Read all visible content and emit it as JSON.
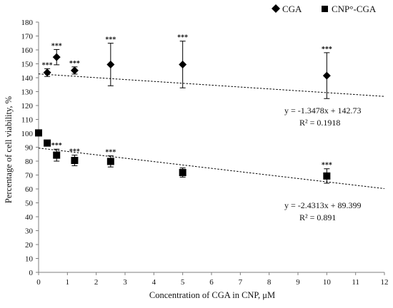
{
  "chart_data": {
    "type": "scatter",
    "title": "",
    "xlabel": "Concentration of CGA in CNP, μM",
    "ylabel": "Percentage of cell viability, %",
    "xlim": [
      0,
      12
    ],
    "ylim": [
      0,
      180
    ],
    "x_ticks": [
      0,
      1,
      2,
      3,
      4,
      5,
      6,
      7,
      8,
      9,
      10,
      11,
      12
    ],
    "y_ticks": [
      0,
      10,
      20,
      30,
      40,
      50,
      60,
      70,
      80,
      90,
      100,
      110,
      120,
      130,
      140,
      150,
      160,
      170,
      180
    ],
    "grid": false,
    "legend_position": "top-right",
    "series": [
      {
        "name": "CGA",
        "marker": "diamond",
        "color": "#000000",
        "points": [
          {
            "x": 0.3,
            "y": 143.7,
            "err": 2.8,
            "label": "***"
          },
          {
            "x": 0.625,
            "y": 154.8,
            "err": 5.5,
            "label": "***"
          },
          {
            "x": 1.25,
            "y": 145.2,
            "err": 2.6,
            "label": "***"
          },
          {
            "x": 2.5,
            "y": 149.5,
            "err": 15.3,
            "label": "***"
          },
          {
            "x": 5.0,
            "y": 149.5,
            "err": 16.8,
            "label": "***"
          },
          {
            "x": 10.0,
            "y": 141.5,
            "err": 16.5,
            "label": "***"
          }
        ],
        "trendline": {
          "slope": -1.3478,
          "intercept": 142.73
        },
        "equation": "y = -1.3478x + 142.73",
        "r2": "R² = 0.1918"
      },
      {
        "name": "CNP°-CGA",
        "marker": "square",
        "color": "#000000",
        "points": [
          {
            "x": 0.0,
            "y": 100.3,
            "err": 0,
            "label": ""
          },
          {
            "x": 0.3,
            "y": 93.0,
            "err": 0,
            "label": ""
          },
          {
            "x": 0.625,
            "y": 84.3,
            "err": 4.3,
            "label": "***"
          },
          {
            "x": 1.25,
            "y": 80.5,
            "err": 3.8,
            "label": "***"
          },
          {
            "x": 2.5,
            "y": 79.8,
            "err": 4.0,
            "label": "***"
          },
          {
            "x": 5.0,
            "y": 71.8,
            "err": 3.3,
            "label": ""
          },
          {
            "x": 10.0,
            "y": 69.3,
            "err": 5.2,
            "label": "***"
          }
        ],
        "trendline": {
          "slope": -2.4313,
          "intercept": 89.399
        },
        "equation": "y = -2.4313x + 89.399",
        "r2": "R² = 0.891"
      }
    ]
  }
}
